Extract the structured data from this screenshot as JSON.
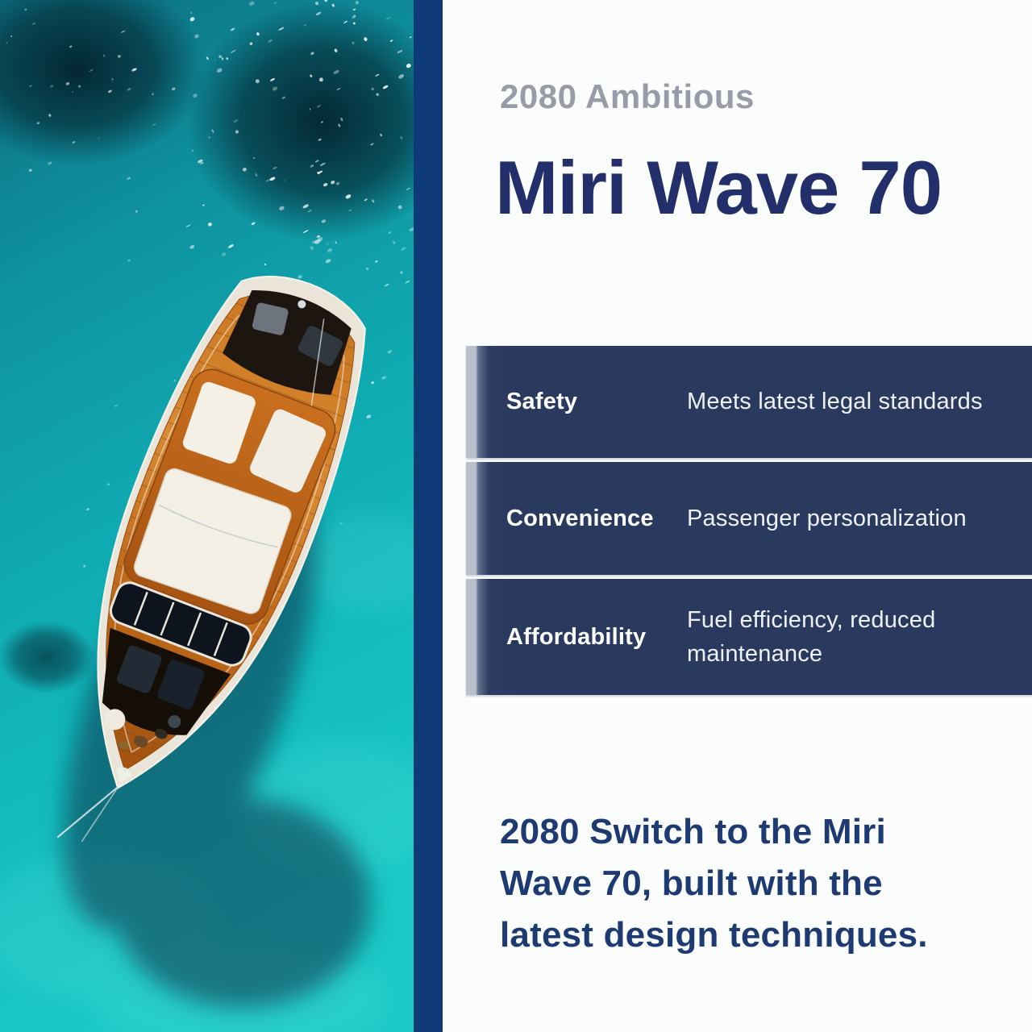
{
  "photo": {
    "alt": "Aerial photo of a classic wooden motor yacht anchored on clear turquoise water"
  },
  "colors": {
    "page_background": "#fbfdfc",
    "divider_navy": "#0e3b78",
    "row_navy": "#2a3a5f",
    "row_accent_light": "#b9c0cc",
    "eyebrow_gray": "#989ba8",
    "title_navy": "#232f6b",
    "tagline_navy": "#1e3a73",
    "water_turquoise": "#10a8b0"
  },
  "header": {
    "eyebrow": "2080 Ambitious",
    "title": "Miri Wave 70"
  },
  "features": {
    "rows": [
      {
        "label": "Safety",
        "description": "Meets latest legal standards"
      },
      {
        "label": "Convenience",
        "description": "Passenger personalization"
      },
      {
        "label": "Affordability",
        "description": "Fuel efficiency, reduced maintenance"
      }
    ]
  },
  "footer": {
    "tagline": "2080 Switch to the Miri Wave 70, built with the latest design techniques."
  }
}
